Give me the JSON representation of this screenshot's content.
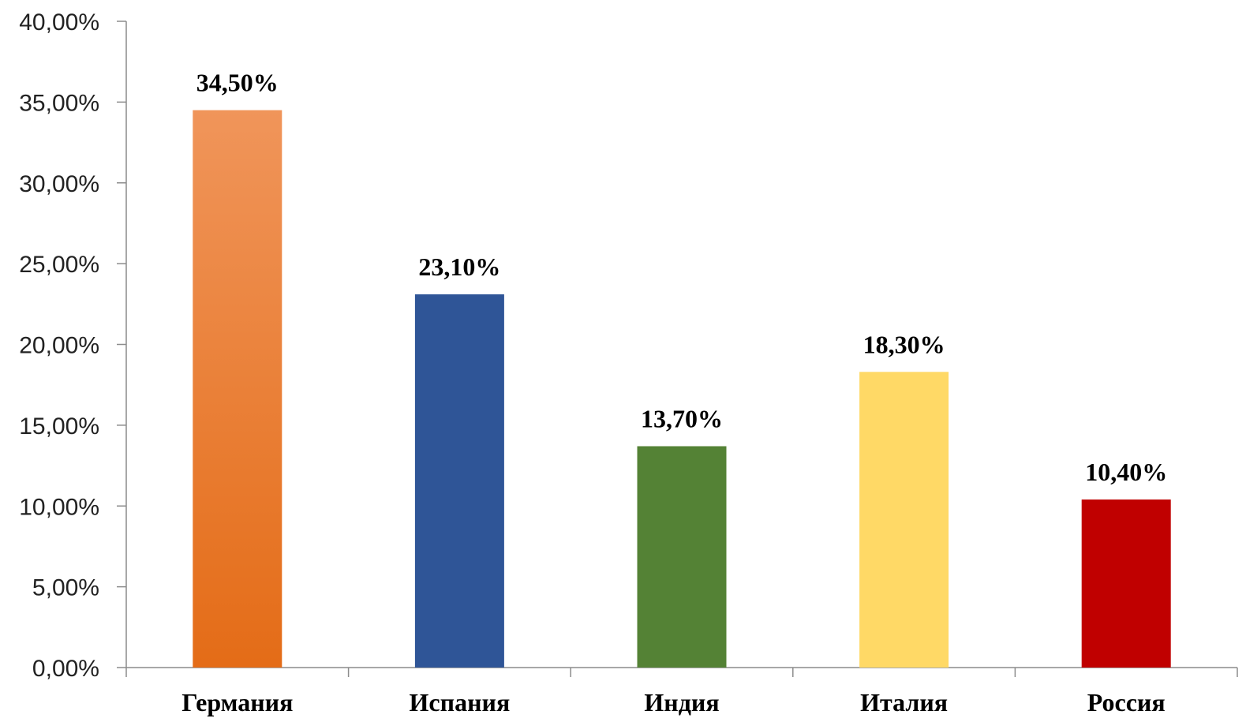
{
  "chart_data": {
    "type": "bar",
    "categories": [
      "Германия",
      "Испания",
      "Индия",
      "Италия",
      "Россия"
    ],
    "values": [
      34.5,
      23.1,
      13.7,
      18.3,
      10.4
    ],
    "data_labels": [
      "34,50%",
      "23,10%",
      "13,70%",
      "18,30%",
      "10,40%"
    ],
    "colors": [
      "#ED7D31",
      "#2F5597",
      "#548235",
      "#FFD966",
      "#C00000"
    ],
    "gradient_top_colors": [
      "#F0955A",
      "#2F5597",
      "#548235",
      "#FFD966",
      "#C00000"
    ],
    "gradient_bottom_colors": [
      "#E46C17",
      "#2F5597",
      "#548235",
      "#FFD966",
      "#C00000"
    ],
    "ylim": [
      0,
      40
    ],
    "y_ticks": [
      0,
      5,
      10,
      15,
      20,
      25,
      30,
      35,
      40
    ],
    "y_tick_labels": [
      "0,00%",
      "5,00%",
      "10,00%",
      "15,00%",
      "20,00%",
      "25,00%",
      "30,00%",
      "35,00%",
      "40,00%"
    ],
    "title": "",
    "xlabel": "",
    "ylabel": "",
    "grid": false,
    "legend": "none"
  }
}
